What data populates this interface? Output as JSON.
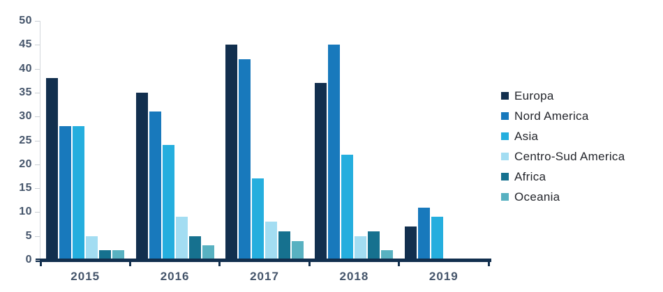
{
  "chart_data": {
    "type": "bar",
    "title": "",
    "categories": [
      "2015",
      "2016",
      "2017",
      "2018",
      "2019"
    ],
    "series": [
      {
        "name": "Europa",
        "color": "#122F4E",
        "values": [
          38,
          35,
          45,
          37,
          7
        ]
      },
      {
        "name": "Nord America",
        "color": "#1879BC",
        "values": [
          28,
          31,
          42,
          45,
          11
        ]
      },
      {
        "name": "Asia",
        "color": "#25AEDE",
        "values": [
          28,
          24,
          17,
          22,
          9
        ]
      },
      {
        "name": "Centro-Sud America",
        "color": "#A3DDF2",
        "values": [
          5,
          9,
          8,
          5,
          0
        ]
      },
      {
        "name": "Africa",
        "color": "#16718F",
        "values": [
          2,
          5,
          6,
          6,
          0
        ]
      },
      {
        "name": "Oceania",
        "color": "#58B1C1",
        "values": [
          2,
          3,
          4,
          2,
          0
        ]
      }
    ],
    "xlabel": "",
    "ylabel": "",
    "ylim": [
      0,
      50
    ],
    "ytick_step": 5,
    "y_tick_labels": [
      "50",
      "45",
      "40",
      "35",
      "30",
      "25",
      "20",
      "15",
      "10",
      "5",
      "0"
    ],
    "grid": false,
    "legend_position": "right"
  },
  "colors": {
    "axis_label": "#44546A",
    "x_axis_line": "#122F4E",
    "y_axis_line": "#D3D7DC",
    "legend_text": "#23252B",
    "background": "#FFFFFF"
  }
}
